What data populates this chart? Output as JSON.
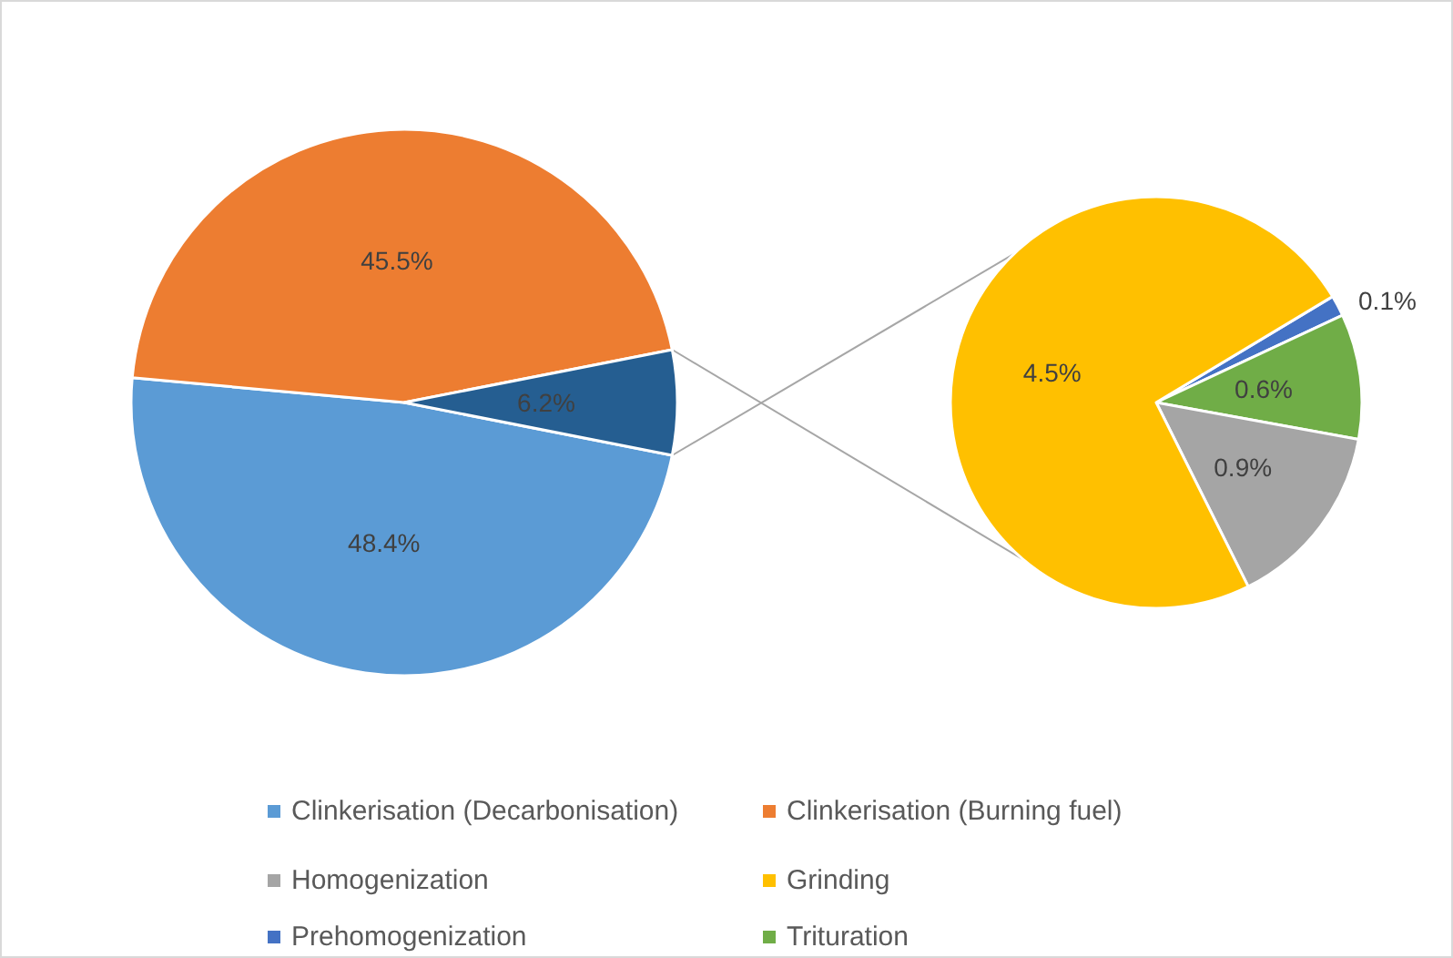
{
  "chart_data": [
    {
      "type": "pie",
      "categories": [
        "Clinkerisation (Decarbonisation)",
        "Clinkerisation (Burning fuel)",
        null
      ],
      "values": [
        48.4,
        45.5,
        6.2
      ],
      "colors": [
        "#5b9bd5",
        "#ed7d31",
        "#255e91"
      ],
      "value_labels": [
        "48.4%",
        "45.5%",
        "6.2%"
      ],
      "legend": "bottom"
    },
    {
      "type": "pie",
      "categories": [
        "Prehomogenization",
        "Trituration",
        "Homogenization",
        "Grinding"
      ],
      "values": [
        0.1,
        0.6,
        0.9,
        4.5
      ],
      "colors": [
        "#4472c4",
        "#70ad47",
        "#a5a5a5",
        "#ffc000"
      ],
      "value_labels": [
        "0.1%",
        "0.6%",
        "0.9%",
        "4.5%"
      ],
      "legend": "bottom"
    }
  ]
}
